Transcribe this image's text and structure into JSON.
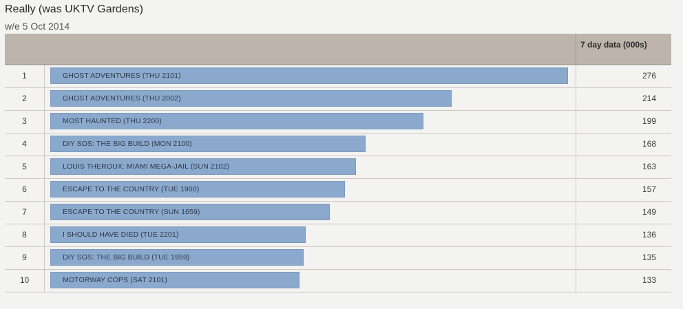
{
  "title": "Really (was UKTV Gardens)",
  "subtitle": "w/e 5 Oct 2014",
  "header": {
    "value_label": "7 day data (000s)"
  },
  "colors": {
    "bar": "#8aa9cd",
    "header_bg": "#bdb5ac",
    "page_bg": "#f3f3f1"
  },
  "chart_data": {
    "type": "bar",
    "orientation": "horizontal",
    "title": "Really (was UKTV Gardens)",
    "subtitle": "w/e 5 Oct 2014",
    "value_label": "7 day data (000s)",
    "xlim": [
      0,
      276
    ],
    "grid": false,
    "legend": "none",
    "rows": [
      {
        "rank": "1",
        "label": "GHOST ADVENTURES (THU 2101)",
        "value": 276
      },
      {
        "rank": "2",
        "label": "GHOST ADVENTURES (THU 2002)",
        "value": 214
      },
      {
        "rank": "3",
        "label": "MOST HAUNTED (THU 2200)",
        "value": 199
      },
      {
        "rank": "4",
        "label": "DIY SOS: THE BIG BUILD (MON 2100)",
        "value": 168
      },
      {
        "rank": "5",
        "label": "LOUIS THEROUX: MIAMI MEGA-JAIL (SUN 2102)",
        "value": 163
      },
      {
        "rank": "6",
        "label": "ESCAPE TO THE COUNTRY (TUE 1900)",
        "value": 157
      },
      {
        "rank": "7",
        "label": "ESCAPE TO THE COUNTRY (SUN 1659)",
        "value": 149
      },
      {
        "rank": "8",
        "label": "I SHOULD HAVE DIED (TUE 2201)",
        "value": 136
      },
      {
        "rank": "9",
        "label": "DIY SOS: THE BIG BUILD (TUE 1959)",
        "value": 135
      },
      {
        "rank": "10",
        "label": "MOTORWAY COPS (SAT 2101)",
        "value": 133
      }
    ]
  }
}
